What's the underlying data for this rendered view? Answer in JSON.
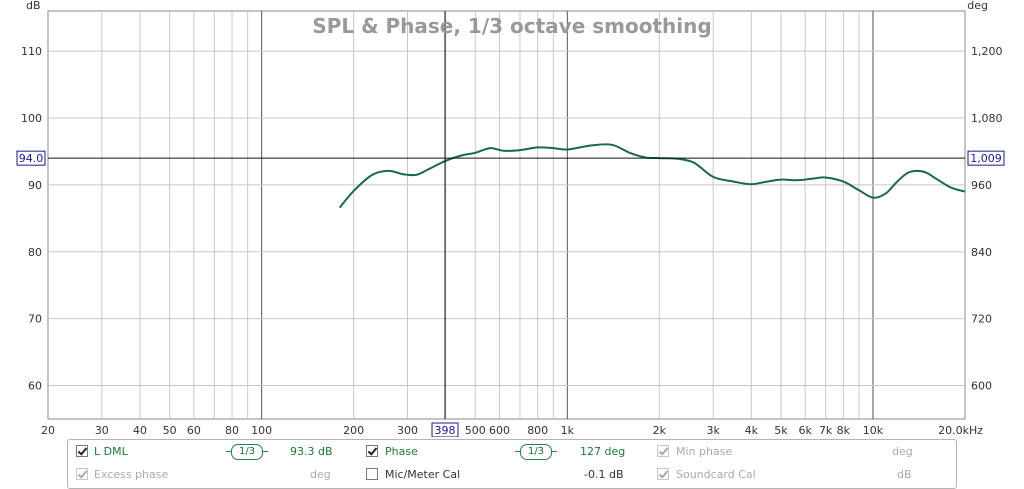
{
  "title": "SPL & Phase, 1/3 octave smoothing",
  "chart_data": {
    "type": "line",
    "title": "SPL & Phase, 1/3 octave smoothing",
    "xlabel": "kHz",
    "ylabel_left": "dB",
    "ylabel_right": "deg",
    "x_scale": "log",
    "xlim": [
      20,
      20000
    ],
    "ylim_left": [
      55,
      116
    ],
    "ylim_right": [
      540,
      1272
    ],
    "grid": true,
    "x_ticks": [
      {
        "value": 20,
        "label": "20"
      },
      {
        "value": 30,
        "label": "30"
      },
      {
        "value": 40,
        "label": "40"
      },
      {
        "value": 50,
        "label": "50"
      },
      {
        "value": 60,
        "label": "60"
      },
      {
        "value": 80,
        "label": "80"
      },
      {
        "value": 100,
        "label": "100"
      },
      {
        "value": 200,
        "label": "200"
      },
      {
        "value": 300,
        "label": "300"
      },
      {
        "value": 500,
        "label": "500"
      },
      {
        "value": 600,
        "label": "600"
      },
      {
        "value": 800,
        "label": "800"
      },
      {
        "value": 1000,
        "label": "1k"
      },
      {
        "value": 2000,
        "label": "2k"
      },
      {
        "value": 3000,
        "label": "3k"
      },
      {
        "value": 4000,
        "label": "4k"
      },
      {
        "value": 5000,
        "label": "5k"
      },
      {
        "value": 6000,
        "label": "6k"
      },
      {
        "value": 7000,
        "label": "7k"
      },
      {
        "value": 8000,
        "label": "8k"
      },
      {
        "value": 10000,
        "label": "10k"
      },
      {
        "value": 20000,
        "label": "20.0kHz"
      }
    ],
    "y_ticks_left": [
      {
        "value": 60,
        "label": "60"
      },
      {
        "value": 70,
        "label": "70"
      },
      {
        "value": 80,
        "label": "80"
      },
      {
        "value": 90,
        "label": "90"
      },
      {
        "value": 100,
        "label": "100"
      },
      {
        "value": 110,
        "label": "110"
      }
    ],
    "y_ticks_right": [
      {
        "value": 600,
        "label": "600"
      },
      {
        "value": 720,
        "label": "720"
      },
      {
        "value": 840,
        "label": "840"
      },
      {
        "value": 960,
        "label": "960"
      },
      {
        "value": 1080,
        "label": "1,080"
      },
      {
        "value": 1200,
        "label": "1,200"
      }
    ],
    "cursor": {
      "x": 398,
      "x_label": "398",
      "y_left": 94.0,
      "y_left_label": "94.0",
      "y_right_label": "1,009"
    },
    "series": [
      {
        "name": "L DML",
        "color": "#1a6b45",
        "x": [
          180,
          200,
          230,
          260,
          290,
          320,
          350,
          400,
          450,
          500,
          560,
          620,
          700,
          800,
          900,
          1000,
          1200,
          1400,
          1600,
          1800,
          2000,
          2300,
          2600,
          3000,
          3500,
          4000,
          4500,
          5000,
          5500,
          6000,
          6500,
          7000,
          8000,
          9000,
          10000,
          11000,
          12000,
          13000,
          14000,
          15000,
          16000,
          18000,
          20000
        ],
        "y": [
          86.6,
          89.1,
          91.5,
          92.1,
          91.6,
          91.5,
          92.3,
          93.6,
          94.4,
          94.8,
          95.5,
          95.1,
          95.2,
          95.6,
          95.5,
          95.3,
          95.9,
          96.0,
          94.8,
          94.1,
          94.0,
          93.9,
          93.3,
          91.2,
          90.5,
          90.1,
          90.5,
          90.8,
          90.7,
          90.8,
          91.0,
          91.1,
          90.5,
          89.2,
          88.1,
          88.7,
          90.5,
          91.8,
          92.1,
          91.8,
          91.0,
          89.6,
          89.0
        ]
      }
    ]
  },
  "legend": {
    "row1": [
      {
        "name": "l-dml",
        "checked": true,
        "enabled": true,
        "label": "L DML",
        "smoothing": "1/3",
        "value": "93.3 dB"
      },
      {
        "name": "phase",
        "checked": true,
        "enabled": true,
        "label": "Phase",
        "smoothing": "1/3",
        "value": "127 deg"
      },
      {
        "name": "min-phase",
        "checked": true,
        "enabled": false,
        "label": "Min phase",
        "value": "deg"
      }
    ],
    "row2": [
      {
        "name": "excess-phase",
        "checked": true,
        "enabled": false,
        "label": "Excess phase",
        "value": "deg"
      },
      {
        "name": "mic-meter-cal",
        "checked": false,
        "enabled": true,
        "label": "Mic/Meter Cal",
        "value": "-0.1 dB"
      },
      {
        "name": "soundcard-cal",
        "checked": true,
        "enabled": false,
        "label": "Soundcard Cal",
        "value": "dB"
      }
    ]
  }
}
